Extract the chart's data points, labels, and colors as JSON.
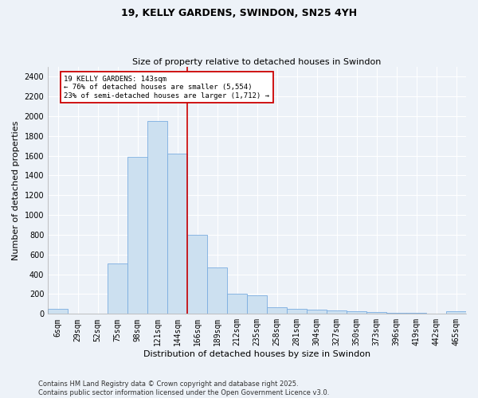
{
  "title_line1": "19, KELLY GARDENS, SWINDON, SN25 4YH",
  "title_line2": "Size of property relative to detached houses in Swindon",
  "xlabel": "Distribution of detached houses by size in Swindon",
  "ylabel": "Number of detached properties",
  "bar_color": "#cce0f0",
  "bar_edge_color": "#7aade0",
  "categories": [
    "6sqm",
    "29sqm",
    "52sqm",
    "75sqm",
    "98sqm",
    "121sqm",
    "144sqm",
    "166sqm",
    "189sqm",
    "212sqm",
    "235sqm",
    "258sqm",
    "281sqm",
    "304sqm",
    "327sqm",
    "350sqm",
    "373sqm",
    "396sqm",
    "419sqm",
    "442sqm",
    "465sqm"
  ],
  "values": [
    55,
    0,
    0,
    510,
    1590,
    1950,
    1620,
    800,
    470,
    200,
    190,
    65,
    50,
    45,
    35,
    25,
    18,
    12,
    8,
    0,
    25
  ],
  "ylim": [
    0,
    2500
  ],
  "yticks": [
    0,
    200,
    400,
    600,
    800,
    1000,
    1200,
    1400,
    1600,
    1800,
    2000,
    2200,
    2400
  ],
  "vline_color": "#cc0000",
  "annotation_text": "19 KELLY GARDENS: 143sqm\n← 76% of detached houses are smaller (5,554)\n23% of semi-detached houses are larger (1,712) →",
  "annotation_box_color": "#cc0000",
  "background_color": "#edf2f8",
  "grid_color": "#ffffff",
  "footnote": "Contains HM Land Registry data © Crown copyright and database right 2025.\nContains public sector information licensed under the Open Government Licence v3.0.",
  "title_fontsize": 9,
  "subtitle_fontsize": 8,
  "xlabel_fontsize": 8,
  "ylabel_fontsize": 8,
  "tick_fontsize": 7,
  "footnote_fontsize": 6
}
